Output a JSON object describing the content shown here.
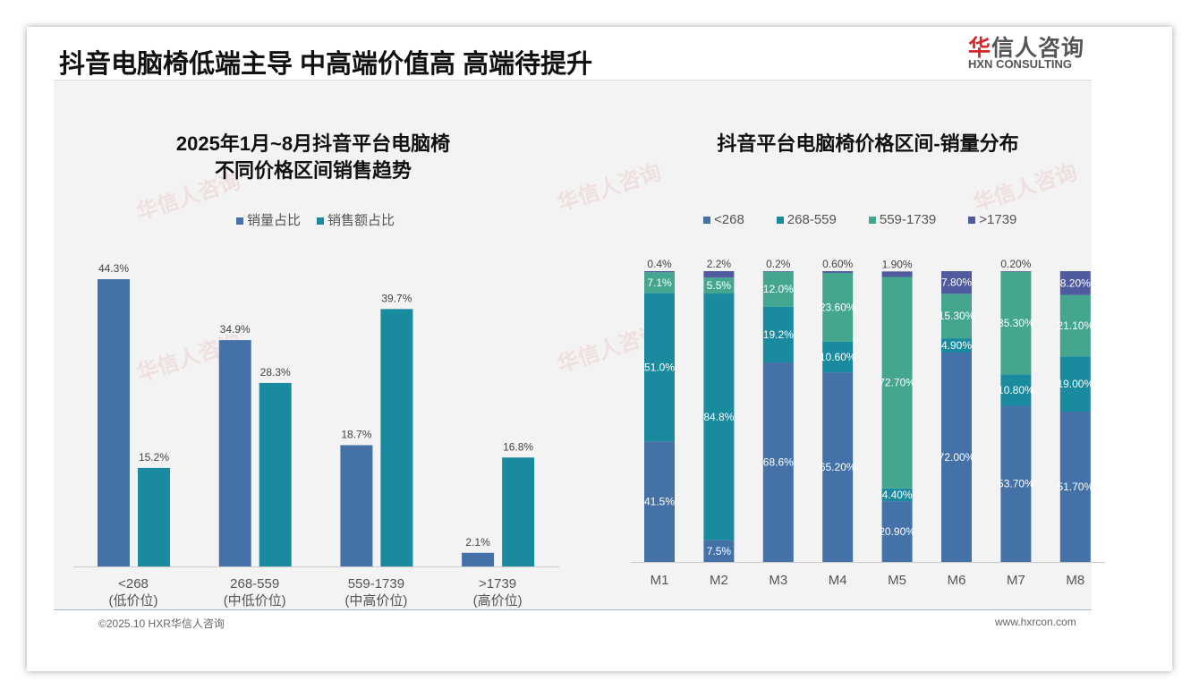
{
  "header": {
    "title": "抖音电脑椅低端主导 中高端价值高 高端待提升",
    "logo_cn_red": "华",
    "logo_cn": "信人咨询",
    "logo_en": "HXN CONSULTING"
  },
  "footer": {
    "left": "©2025.10 HXR华信人咨询",
    "right": "www.hxrcon.com"
  },
  "colors": {
    "c1": "#4472a8",
    "c2": "#1a8a9f",
    "c3": "#45a68f",
    "c4": "#4f5b9e"
  },
  "chart_data": [
    {
      "type": "bar",
      "title_line1": "2025年1月~8月抖音平台电脑椅",
      "title_line2": "不同价格区间销售趋势",
      "categories": [
        "<268",
        "268-559",
        "559-1739",
        ">1739"
      ],
      "category_sub": [
        "(低价位)",
        "(中低价位)",
        "(中高价位)",
        "(高价位)"
      ],
      "series": [
        {
          "name": "销量占比",
          "values": [
            44.3,
            34.9,
            18.7,
            2.1
          ],
          "labels": [
            "44.3%",
            "34.9%",
            "18.7%",
            "2.1%"
          ]
        },
        {
          "name": "销售额占比",
          "values": [
            15.2,
            28.3,
            39.7,
            16.8
          ],
          "labels": [
            "15.2%",
            "28.3%",
            "39.7%",
            "16.8%"
          ]
        }
      ],
      "ylim": [
        0,
        44.3
      ]
    },
    {
      "type": "bar",
      "stacked": true,
      "title": "抖音平台电脑椅价格区间-销量分布",
      "categories": [
        "M1",
        "M2",
        "M3",
        "M4",
        "M5",
        "M6",
        "M7",
        "M8"
      ],
      "series": [
        {
          "name": "<268",
          "values": [
            41.5,
            7.5,
            68.6,
            65.2,
            20.9,
            72.0,
            53.7,
            51.7
          ],
          "labels": [
            "41.5%",
            "7.5%",
            "68.6%",
            "65.20%",
            "20.90%",
            "72.00%",
            "53.70%",
            "51.70%"
          ]
        },
        {
          "name": "268-559",
          "values": [
            51.0,
            84.8,
            19.2,
            10.6,
            4.4,
            4.9,
            10.8,
            19.0
          ],
          "labels": [
            "51.0%",
            "84.8%",
            "19.2%",
            "10.60%",
            "4.40%",
            "4.90%",
            "10.80%",
            "19.00%"
          ]
        },
        {
          "name": "559-1739",
          "values": [
            7.1,
            5.5,
            12.0,
            23.6,
            72.7,
            15.3,
            35.3,
            21.1
          ],
          "labels": [
            "7.1%",
            "5.5%",
            "12.0%",
            "23.60%",
            "72.70%",
            "15.30%",
            "35.30%",
            "21.10%"
          ]
        },
        {
          "name": ">1739",
          "values": [
            0.4,
            2.2,
            0.2,
            0.6,
            1.9,
            7.8,
            0.2,
            8.2
          ],
          "labels": [
            "0.4%",
            "2.2%",
            "0.2%",
            "0.60%",
            "1.90%",
            "7.80%",
            "0.20%",
            "8.20%"
          ]
        }
      ],
      "ylim": [
        0,
        100
      ]
    }
  ]
}
